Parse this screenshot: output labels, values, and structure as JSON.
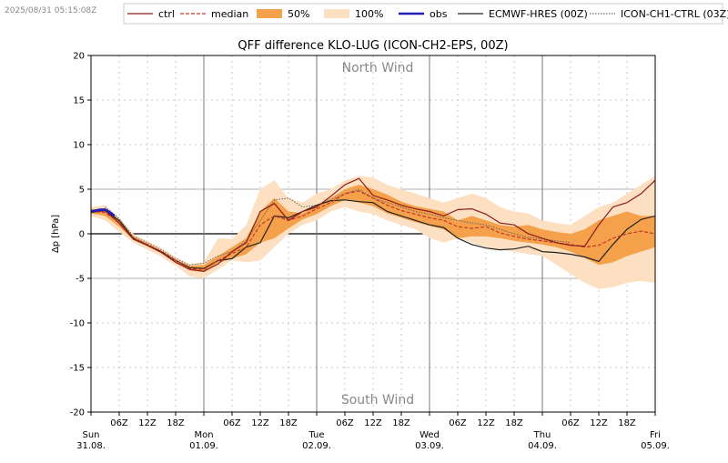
{
  "timestamp": "2025/08/31 05:15:08Z",
  "colors": {
    "ctrl": "#8b1a1a",
    "median": "#c0392b",
    "p50": "#f5a04a",
    "p100": "#fde0c2",
    "obs": "#1f1fb4",
    "ecmwf": "#222222",
    "icon1": "#666666",
    "grid": "#aaaaaa",
    "annot": "#888888"
  },
  "legend": [
    {
      "key": "ctrl",
      "label": "ctrl",
      "style": "line"
    },
    {
      "key": "median",
      "label": "median",
      "style": "dash"
    },
    {
      "key": "p50",
      "label": "50%",
      "style": "fill"
    },
    {
      "key": "p100",
      "label": "100%",
      "style": "fill"
    },
    {
      "key": "obs",
      "label": "obs",
      "style": "thick"
    },
    {
      "key": "ecmwf",
      "label": "ECMWF-HRES (00Z)",
      "style": "line"
    },
    {
      "key": "icon1",
      "label": "ICON-CH1-CTRL (03Z)",
      "style": "dot"
    }
  ],
  "chart_data": {
    "type": "line",
    "title": "QFF difference KLO-LUG (ICON-CH2-EPS, 00Z)",
    "ylabel": "Δp [hPa]",
    "ylim": [
      -20,
      20
    ],
    "xlim_hours": [
      0,
      120
    ],
    "yticks": [
      -20,
      -15,
      -10,
      -5,
      0,
      5,
      10,
      15,
      20
    ],
    "xticks_minor": [
      {
        "h": 6,
        "label": "06Z"
      },
      {
        "h": 12,
        "label": "12Z"
      },
      {
        "h": 18,
        "label": "18Z"
      },
      {
        "h": 30,
        "label": "06Z"
      },
      {
        "h": 36,
        "label": "12Z"
      },
      {
        "h": 42,
        "label": "18Z"
      },
      {
        "h": 54,
        "label": "06Z"
      },
      {
        "h": 60,
        "label": "12Z"
      },
      {
        "h": 66,
        "label": "18Z"
      },
      {
        "h": 78,
        "label": "06Z"
      },
      {
        "h": 84,
        "label": "12Z"
      },
      {
        "h": 90,
        "label": "18Z"
      },
      {
        "h": 102,
        "label": "06Z"
      },
      {
        "h": 108,
        "label": "12Z"
      },
      {
        "h": 114,
        "label": "18Z"
      }
    ],
    "xticks_major": [
      {
        "h": 0,
        "day": "Sun",
        "date": "31.08."
      },
      {
        "h": 24,
        "day": "Mon",
        "date": "01.09."
      },
      {
        "h": 48,
        "day": "Tue",
        "date": "02.09."
      },
      {
        "h": 72,
        "day": "Wed",
        "date": "03.09."
      },
      {
        "h": 96,
        "day": "Thu",
        "date": "04.09."
      },
      {
        "h": 120,
        "day": "Fri",
        "date": "05.09."
      }
    ],
    "annotations": {
      "top": "North Wind",
      "bottom": "South Wind"
    },
    "x": [
      0,
      3,
      6,
      9,
      12,
      15,
      18,
      21,
      24,
      27,
      30,
      33,
      36,
      39,
      42,
      45,
      48,
      51,
      54,
      57,
      60,
      63,
      66,
      69,
      72,
      75,
      78,
      81,
      84,
      87,
      90,
      93,
      96,
      99,
      102,
      105,
      108,
      111,
      114,
      117,
      120
    ],
    "p100_upper": [
      3.0,
      3.2,
      1.8,
      0.0,
      -0.8,
      -1.6,
      -2.6,
      -3.4,
      -3.2,
      -0.5,
      -0.6,
      1.0,
      5.0,
      6.0,
      4.0,
      3.5,
      4.5,
      5.0,
      6.0,
      6.5,
      6.3,
      5.5,
      5.0,
      4.5,
      4.0,
      3.5,
      4.0,
      4.5,
      4.0,
      3.0,
      2.5,
      2.3,
      1.5,
      1.2,
      1.0,
      2.0,
      3.0,
      3.5,
      4.5,
      5.5,
      6.5
    ],
    "p100_lower": [
      2.0,
      1.5,
      0.2,
      -1.0,
      -1.8,
      -2.6,
      -3.6,
      -4.8,
      -5.0,
      -4.0,
      -3.0,
      -3.2,
      -3.0,
      -1.5,
      0.0,
      1.0,
      1.5,
      2.5,
      3.0,
      2.5,
      2.2,
      1.5,
      1.0,
      0.5,
      -0.5,
      -1.0,
      -0.5,
      -1.0,
      -1.5,
      -1.8,
      -2.0,
      -2.3,
      -2.5,
      -3.5,
      -4.5,
      -5.5,
      -6.2,
      -6.0,
      -5.5,
      -5.3,
      -5.5
    ],
    "p50_upper": [
      2.8,
      2.7,
      1.6,
      -0.3,
      -1.1,
      -1.9,
      -2.9,
      -3.6,
      -3.5,
      -2.5,
      -1.5,
      -0.5,
      2.5,
      4.0,
      2.5,
      2.3,
      3.2,
      4.0,
      5.0,
      5.5,
      5.0,
      4.4,
      3.6,
      3.1,
      2.8,
      2.5,
      1.5,
      2.0,
      1.5,
      1.0,
      0.8,
      1.0,
      0.5,
      0.2,
      0.0,
      0.5,
      1.5,
      2.0,
      2.5,
      2.0,
      2.0
    ],
    "p50_lower": [
      2.3,
      2.0,
      0.8,
      -0.7,
      -1.4,
      -2.2,
      -3.2,
      -4.1,
      -4.3,
      -3.3,
      -2.8,
      -2.3,
      -1.0,
      -0.5,
      0.6,
      1.6,
      2.2,
      3.1,
      3.8,
      3.5,
      3.1,
      2.3,
      1.8,
      1.3,
      0.9,
      0.5,
      -0.5,
      -0.3,
      -0.3,
      -0.5,
      -0.8,
      -1.0,
      -1.2,
      -1.5,
      -2.0,
      -2.7,
      -3.5,
      -3.2,
      -2.5,
      -2.0,
      -1.5
    ],
    "median": [
      2.5,
      2.4,
      1.3,
      -0.5,
      -1.2,
      -2.0,
      -3.0,
      -3.9,
      -4.0,
      -3.0,
      -2.2,
      -1.5,
      1.0,
      2.0,
      1.5,
      2.0,
      2.8,
      3.5,
      4.5,
      4.8,
      4.0,
      3.2,
      2.6,
      2.2,
      1.8,
      1.5,
      0.8,
      0.6,
      0.8,
      0.1,
      -0.3,
      -0.6,
      -0.8,
      -1.0,
      -1.2,
      -1.5,
      -1.3,
      -0.5,
      0.0,
      0.3,
      0.0
    ],
    "ctrl": [
      2.5,
      2.6,
      1.2,
      -0.6,
      -1.3,
      -2.1,
      -3.2,
      -4.0,
      -4.2,
      -3.4,
      -2.0,
      -1.0,
      2.5,
      3.4,
      1.5,
      2.5,
      3.0,
      4.2,
      5.5,
      6.2,
      4.3,
      3.8,
      3.2,
      2.8,
      2.5,
      2.0,
      2.7,
      2.8,
      2.2,
      1.2,
      1.0,
      0.0,
      -0.5,
      -1.0,
      -1.3,
      -1.4,
      1.0,
      3.0,
      3.5,
      4.5,
      6.0
    ],
    "ecmwf": [
      2.4,
      2.6,
      1.5,
      -0.5,
      -1.3,
      -2.0,
      -3.0,
      -3.8,
      -3.9,
      -3.0,
      -2.8,
      -1.5,
      -1.0,
      2.0,
      1.8,
      2.5,
      3.2,
      3.7,
      3.8,
      3.6,
      3.5,
      2.5,
      2.0,
      1.5,
      1.0,
      0.7,
      -0.5,
      -1.2,
      -1.6,
      -1.8,
      -1.7,
      -1.4,
      -2.0,
      -2.1,
      -2.3,
      -2.6,
      -3.1,
      -1.2,
      0.5,
      1.6,
      2.0
    ],
    "icon1": [
      null,
      3.0,
      1.7,
      -0.3,
      -1.0,
      -1.8,
      -2.8,
      -3.5,
      -3.3,
      -2.5,
      -2.0,
      -0.8,
      1.5,
      3.8,
      4.0,
      3.0,
      3.2,
      3.8,
      4.5,
      5.0,
      4.0,
      3.5,
      3.0,
      2.5,
      2.2,
      1.8,
      1.5,
      1.2,
      1.0,
      0.5,
      0.0,
      -0.4,
      -0.6,
      -0.8,
      -1.0,
      null,
      null,
      null,
      null,
      null,
      null
    ],
    "obs_x": [
      0,
      1,
      2,
      3,
      4,
      5
    ],
    "obs": [
      2.5,
      2.6,
      2.7,
      2.7,
      2.4,
      2.0
    ]
  }
}
